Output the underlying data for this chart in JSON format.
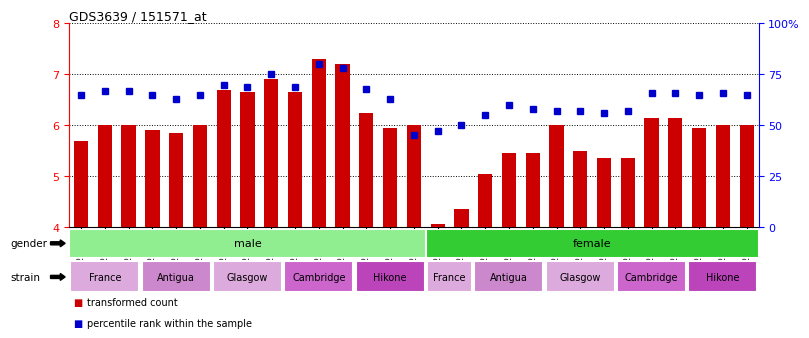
{
  "title": "GDS3639 / 151571_at",
  "samples": [
    "GSM231205",
    "GSM231206",
    "GSM231207",
    "GSM231211",
    "GSM231212",
    "GSM231213",
    "GSM231217",
    "GSM231218",
    "GSM231219",
    "GSM231223",
    "GSM231224",
    "GSM231225",
    "GSM231229",
    "GSM231230",
    "GSM231231",
    "GSM231208",
    "GSM231209",
    "GSM231210",
    "GSM231214",
    "GSM231215",
    "GSM231216",
    "GSM231220",
    "GSM231221",
    "GSM231222",
    "GSM231226",
    "GSM231227",
    "GSM231228",
    "GSM231232",
    "GSM231233"
  ],
  "bar_values": [
    5.7,
    6.0,
    6.0,
    5.9,
    5.85,
    6.0,
    6.7,
    6.65,
    6.9,
    6.65,
    7.3,
    7.2,
    6.25,
    5.95,
    6.0,
    4.05,
    4.35,
    5.05,
    5.45,
    5.45,
    6.0,
    5.5,
    5.35,
    5.35,
    6.15,
    6.15,
    5.95,
    6.0,
    6.0
  ],
  "dot_values": [
    65,
    67,
    67,
    65,
    63,
    65,
    70,
    69,
    75,
    69,
    80,
    78,
    68,
    63,
    45,
    47,
    50,
    55,
    60,
    58,
    57,
    57,
    56,
    57,
    66,
    66,
    65,
    66,
    65
  ],
  "ylim_left": [
    4,
    8
  ],
  "ylim_right": [
    0,
    100
  ],
  "yticks_left": [
    4,
    5,
    6,
    7,
    8
  ],
  "yticks_right": [
    0,
    25,
    50,
    75,
    100
  ],
  "bar_color": "#cc0000",
  "dot_color": "#0000cc",
  "plot_bg_color": "#ffffff",
  "fig_bg_color": "#ffffff",
  "gender_groups": [
    {
      "label": "male",
      "start": 0,
      "end": 15,
      "color": "#90ee90"
    },
    {
      "label": "female",
      "start": 15,
      "end": 29,
      "color": "#33cc33"
    }
  ],
  "strain_groups": [
    {
      "label": "France",
      "start": 0,
      "end": 3,
      "color": "#ddaadd"
    },
    {
      "label": "Antigua",
      "start": 3,
      "end": 6,
      "color": "#cc88cc"
    },
    {
      "label": "Glasgow",
      "start": 6,
      "end": 9,
      "color": "#ddaadd"
    },
    {
      "label": "Cambridge",
      "start": 9,
      "end": 12,
      "color": "#cc66cc"
    },
    {
      "label": "Hikone",
      "start": 12,
      "end": 15,
      "color": "#bb44bb"
    },
    {
      "label": "France",
      "start": 15,
      "end": 17,
      "color": "#ddaadd"
    },
    {
      "label": "Antigua",
      "start": 17,
      "end": 20,
      "color": "#cc88cc"
    },
    {
      "label": "Glasgow",
      "start": 20,
      "end": 23,
      "color": "#ddaadd"
    },
    {
      "label": "Cambridge",
      "start": 23,
      "end": 26,
      "color": "#cc66cc"
    },
    {
      "label": "Hikone",
      "start": 26,
      "end": 29,
      "color": "#bb44bb"
    }
  ],
  "legend_items": [
    {
      "label": "transformed count",
      "color": "#cc0000"
    },
    {
      "label": "percentile rank within the sample",
      "color": "#0000cc"
    }
  ],
  "right_ytick_labels": [
    "0",
    "25",
    "50",
    "75",
    "100%"
  ],
  "gender_label": "gender",
  "strain_label": "strain"
}
